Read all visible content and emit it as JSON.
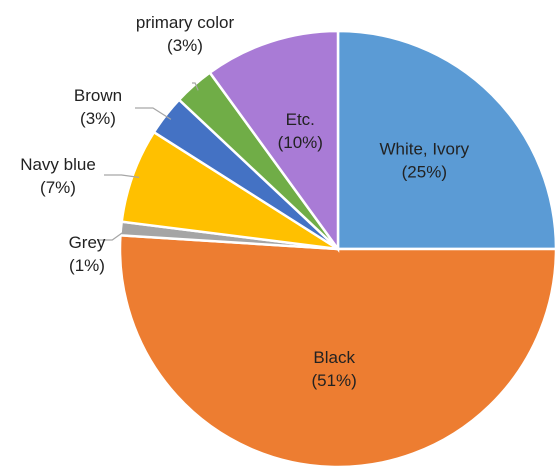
{
  "chart_data": {
    "type": "pie",
    "title": "",
    "slices": [
      {
        "name": "White, Ivory",
        "value": 25,
        "pct_label": "(25%)",
        "color": "#5b9bd5",
        "label_inside": true
      },
      {
        "name": "Black",
        "value": 51,
        "pct_label": "(51%)",
        "color": "#ed7d31",
        "label_inside": true
      },
      {
        "name": "Grey",
        "value": 1,
        "pct_label": "(1%)",
        "color": "#a5a5a5",
        "label_inside": false
      },
      {
        "name": "Navy blue",
        "value": 7,
        "pct_label": "(7%)",
        "color": "#ffc000",
        "label_inside": false
      },
      {
        "name": "Brown",
        "value": 3,
        "pct_label": "(3%)",
        "color": "#4472c4",
        "label_inside": false
      },
      {
        "name": "primary color",
        "value": 3,
        "pct_label": "(3%)",
        "color": "#70ad47",
        "label_inside": false
      },
      {
        "name": "Etc.",
        "value": 10,
        "pct_label": "(10%)",
        "color": "#a97bd6",
        "label_inside": true
      }
    ],
    "start_angle": "12 o'clock",
    "direction": "clockwise",
    "legend": "none"
  }
}
